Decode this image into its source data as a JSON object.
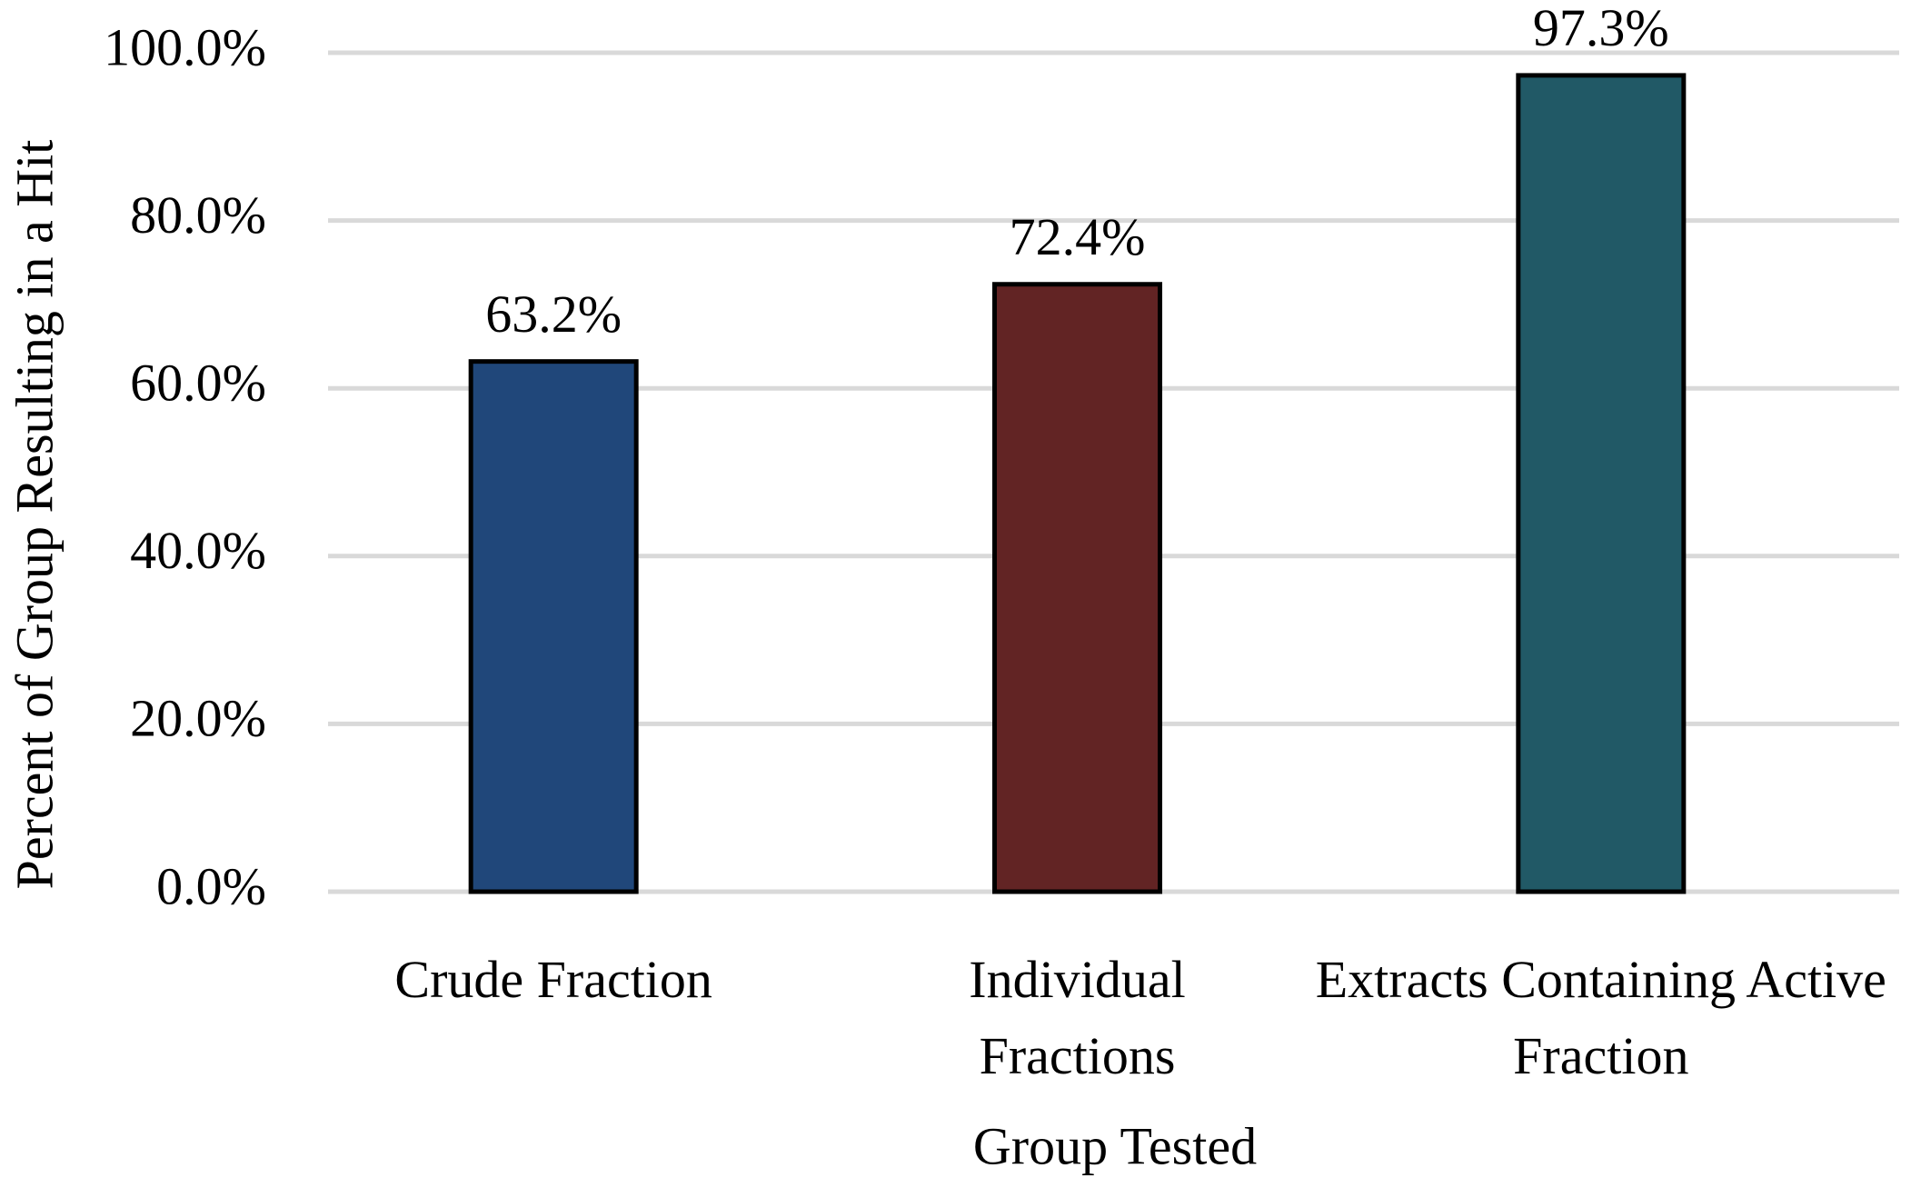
{
  "chart_data": {
    "type": "bar",
    "x_label": "Group Tested",
    "y_label": "Percent of Group Resulting in a Hit",
    "categories": [
      "Crude Fraction",
      "Individual Fractions",
      "Extracts Containing Active Fraction"
    ],
    "values": [
      63.2,
      72.4,
      97.3
    ],
    "value_labels": [
      "63.2%",
      "72.4%",
      "97.3%"
    ],
    "colors": [
      "#20477a",
      "#622424",
      "#215966"
    ],
    "ylim": [
      0,
      100
    ],
    "yticks": [
      {
        "value": 0,
        "label": "0.0%"
      },
      {
        "value": 20,
        "label": "20.0%"
      },
      {
        "value": 40,
        "label": "40.0%"
      },
      {
        "value": 60,
        "label": "60.0%"
      },
      {
        "value": 80,
        "label": "80.0%"
      },
      {
        "value": 100,
        "label": "100.0%"
      }
    ],
    "grid": true
  }
}
